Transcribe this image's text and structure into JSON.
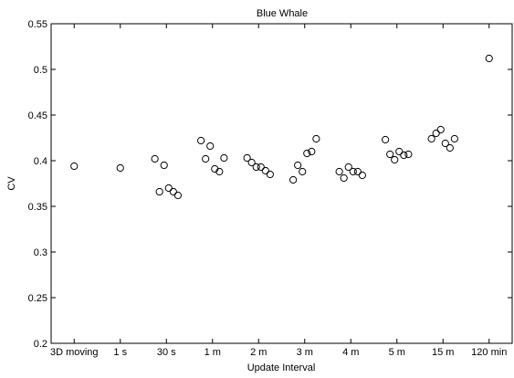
{
  "chart_data": {
    "type": "scatter",
    "title": "Blue Whale",
    "xlabel": "Update Interval",
    "ylabel": "CV",
    "ylim": [
      0.2,
      0.55
    ],
    "yticks": [
      "0.2",
      "0.25",
      "0.3",
      "0.35",
      "0.4",
      "0.45",
      "0.5",
      "0.55"
    ],
    "ytick_values": [
      0.2,
      0.25,
      0.3,
      0.35,
      0.4,
      0.45,
      0.5,
      0.55
    ],
    "categories": [
      "3D moving",
      "1 s",
      "30 s",
      "1 m",
      "2 m",
      "3 m",
      "4 m",
      "5 m",
      "15 m",
      "120 min"
    ],
    "grid": false,
    "marker": "open-circle",
    "marker_color": "#000000",
    "groups": [
      {
        "category": "3D moving",
        "values": [
          0.394
        ]
      },
      {
        "category": "1 s",
        "values": [
          0.392
        ]
      },
      {
        "category": "30 s",
        "values": [
          0.402,
          0.366,
          0.395,
          0.37,
          0.366,
          0.362
        ]
      },
      {
        "category": "1 m",
        "values": [
          0.422,
          0.402,
          0.416,
          0.391,
          0.388,
          0.403
        ]
      },
      {
        "category": "2 m",
        "values": [
          0.403,
          0.398,
          0.393,
          0.393,
          0.389,
          0.385
        ]
      },
      {
        "category": "3 m",
        "values": [
          0.379,
          0.395,
          0.388,
          0.408,
          0.41,
          0.424
        ]
      },
      {
        "category": "4 m",
        "values": [
          0.388,
          0.381,
          0.393,
          0.388,
          0.388,
          0.384
        ]
      },
      {
        "category": "5 m",
        "values": [
          0.423,
          0.407,
          0.401,
          0.41,
          0.406,
          0.407
        ]
      },
      {
        "category": "15 m",
        "values": [
          0.424,
          0.43,
          0.434,
          0.419,
          0.414,
          0.424
        ]
      },
      {
        "category": "120 min",
        "values": [
          0.512
        ]
      }
    ]
  }
}
